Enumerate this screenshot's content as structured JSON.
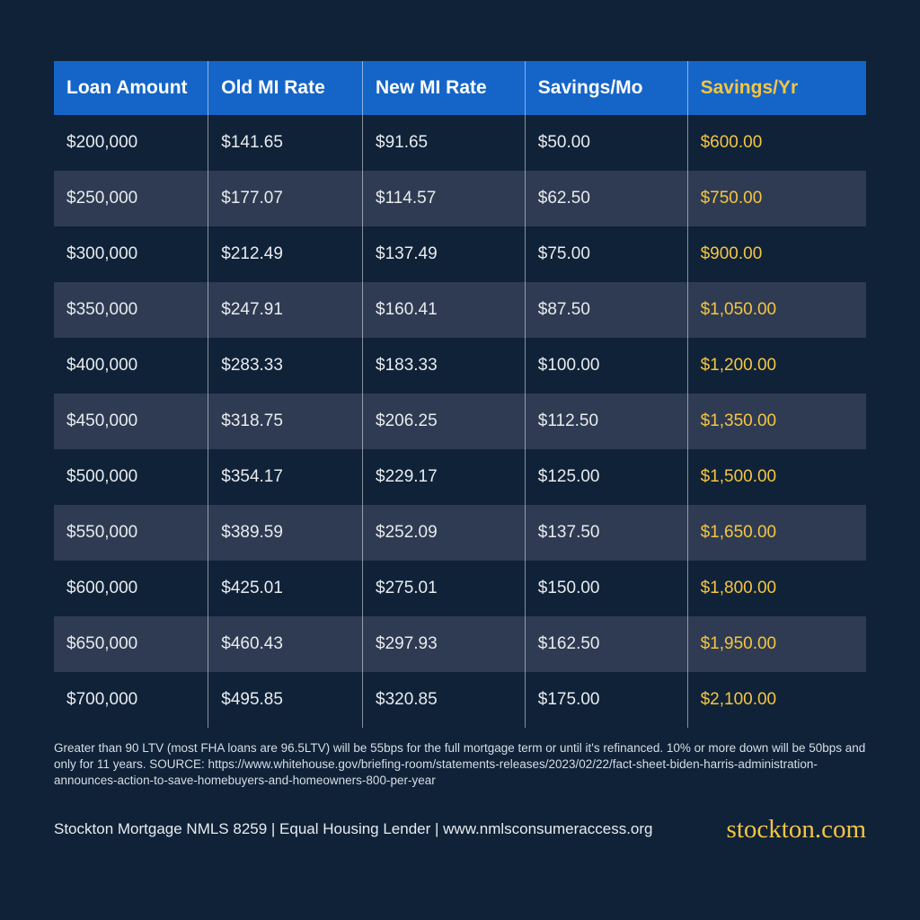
{
  "table": {
    "type": "table",
    "header_bg": "#1565c8",
    "header_color": "#ffffff",
    "accent_color": "#f5c542",
    "row_bg": "#0f2238",
    "row_alt_bg": "#2e3b52",
    "text_color": "#e8ebef",
    "divider_color": "rgba(255,255,255,0.5)",
    "header_fontsize": 21,
    "cell_fontsize": 19,
    "columns": [
      {
        "label": "Loan Amount",
        "accent": false,
        "width": "19%"
      },
      {
        "label": "Old MI Rate",
        "accent": false,
        "width": "19%"
      },
      {
        "label": "New MI Rate",
        "accent": false,
        "width": "20%"
      },
      {
        "label": "Savings/Mo",
        "accent": false,
        "width": "20%"
      },
      {
        "label": "Savings/Yr",
        "accent": true,
        "width": "22%"
      }
    ],
    "rows": [
      [
        " $200,000",
        "$141.65",
        "$91.65",
        "$50.00",
        "$600.00"
      ],
      [
        "$250,000",
        "$177.07",
        "$114.57",
        "$62.50",
        "$750.00"
      ],
      [
        "$300,000",
        "$212.49",
        "$137.49",
        "$75.00",
        "$900.00"
      ],
      [
        "$350,000",
        "$247.91",
        "$160.41",
        "$87.50",
        "$1,050.00"
      ],
      [
        "$400,000",
        "$283.33",
        "$183.33",
        "$100.00",
        "$1,200.00"
      ],
      [
        "$450,000",
        "$318.75",
        "$206.25",
        "$112.50",
        "$1,350.00"
      ],
      [
        "$500,000",
        "$354.17",
        "$229.17",
        "$125.00",
        "$1,500.00"
      ],
      [
        "$550,000",
        "$389.59",
        "$252.09",
        "$137.50",
        "$1,650.00"
      ],
      [
        "$600,000",
        "$425.01",
        "$275.01",
        "$150.00",
        "$1,800.00"
      ],
      [
        "$650,000",
        "$460.43",
        "$297.93",
        "$162.50",
        "$1,950.00"
      ],
      [
        "$700,000",
        "$495.85",
        "$320.85",
        "$175.00",
        "$2,100.00"
      ]
    ]
  },
  "footnote": "Greater than 90 LTV (most FHA loans are 96.5LTV) will be 55bps for the full mortgage term or until it's refinanced. 10% or more down will be 50bps and only for 11 years. SOURCE: https://www.whitehouse.gov/briefing-room/statements-releases/2023/02/22/fact-sheet-biden-harris-administration-announces-action-to-save-homebuyers-and-homeowners-800-per-year",
  "legal": "Stockton Mortgage NMLS 8259 | Equal Housing Lender | www.nmlsconsumeraccess.org",
  "brand": "stockton.com",
  "background_color": "#0f2238"
}
